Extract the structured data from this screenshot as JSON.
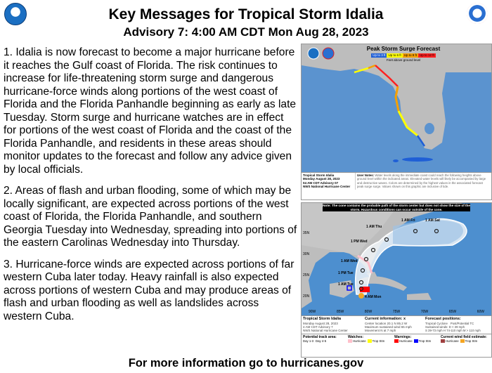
{
  "header": {
    "title": "Key Messages for Tropical Storm Idalia",
    "subtitle": "Advisory 7:  4:00 AM CDT Mon Aug 28, 2023",
    "left_logo": "NOAA",
    "right_logo": "NWS"
  },
  "messages": [
    "1. Idalia is now forecast to become a major hurricane before it reaches the Gulf coast of Florida. The risk continues to increase for life-threatening storm surge and dangerous hurricane-force winds along portions of the west coast of Florida and the Florida Panhandle beginning as early as late Tuesday. Storm surge and hurricane watches are in effect for portions of the west coast of Florida and the coast of the Florida Panhandle, and residents in these areas should monitor updates to the forecast and follow any advice given by local officials.",
    "2. Areas of flash and urban flooding, some of which may be locally significant, are expected across portions of the west coast of Florida, the Florida Panhandle, and southern Georgia Tuesday into Wednesday, spreading into portions of the eastern Carolinas Wednesday into Thursday.",
    "3. Hurricane-force winds are expected across portions of far western Cuba later today. Heavy rainfall is also expected across portions of western Cuba and may produce areas of flash and urban flooding as well as landslides across western Cuba."
  ],
  "surge_map": {
    "title": "Peak Storm Surge Forecast",
    "legend": [
      {
        "label": "Up to 3 ft",
        "color": "#1f5fd6"
      },
      {
        "label": "Up to 6 ft",
        "color": "#ffff00"
      },
      {
        "label": "Up to 9 ft",
        "color": "#f5a000"
      },
      {
        "label": "Up to 12 ft",
        "color": "#ff2020"
      }
    ],
    "legend_note": "Feet above ground level",
    "footer_left": [
      "Tropical Storm Idalia",
      "Monday August 28, 2023",
      "04 AM CDT Advisory 07",
      "NWS National Hurricane Center"
    ],
    "user_notes_label": "User Notes:",
    "user_notes": "Water levels along the immediate coast could reach the following heights above ground level within the indicated areas. Elevated water levels will likely be accompanied by large and destructive waves. Colors are determined by the highest values in the associated forecast peak surge surge. Values shown on this graphic are inclusive of tide."
  },
  "cone_map": {
    "note": "Note: The cone contains the probable path of the storm center but does not show the size of the storm. Hazardous conditions can occur outside of the cone.",
    "positions": [
      "4 AM Mon",
      "1 AM Tue",
      "1 PM Tue",
      "1 AM Wed",
      "1 PM Wed",
      "1 AM Thu",
      "1 AM Fri",
      "1 AM Sat"
    ],
    "lat_labels": [
      "35N",
      "30N",
      "25N",
      "20N"
    ],
    "lon_labels": [
      "90W",
      "85W",
      "80W",
      "75W",
      "70W",
      "65W",
      "60W"
    ],
    "storm_name": "Tropical Storm Idalia",
    "storm_info": [
      "Monday August 28, 2023",
      "4 AM CDT Advisory 7",
      "NWS National Hurricane Center"
    ],
    "current_info_title": "Current information: x",
    "current_info": [
      "Center location 20.1 N 85.2 W",
      "Maximum sustained wind 65 mph",
      "Movement N at 7 mph"
    ],
    "forecast_title": "Forecast positions:",
    "forecast_items": [
      "Tropical Cyclone",
      "Post/Potential TC",
      "Sustained winds:  D < 39 mph",
      "S 39-73 mph  H 74-110 mph  M > 110 mph"
    ],
    "track_area_label": "Potential track area:",
    "track_days": [
      "Day 1-3",
      "Day 4-5"
    ],
    "watches_label": "Watches:",
    "watches": [
      {
        "label": "Hurricane",
        "color": "#ffc0cb"
      },
      {
        "label": "Trop Stm",
        "color": "#ffff00"
      }
    ],
    "warnings_label": "Warnings:",
    "warnings": [
      {
        "label": "Hurricane",
        "color": "#ff0000"
      },
      {
        "label": "Trop Stm",
        "color": "#0000ff"
      }
    ],
    "wind_label": "Current wind field estimate:",
    "wind": [
      {
        "label": "Hurricane",
        "color": "#a0403f"
      },
      {
        "label": "Trop Stm",
        "color": "#f5a623"
      }
    ]
  },
  "footer": "For more information go to hurricanes.gov"
}
